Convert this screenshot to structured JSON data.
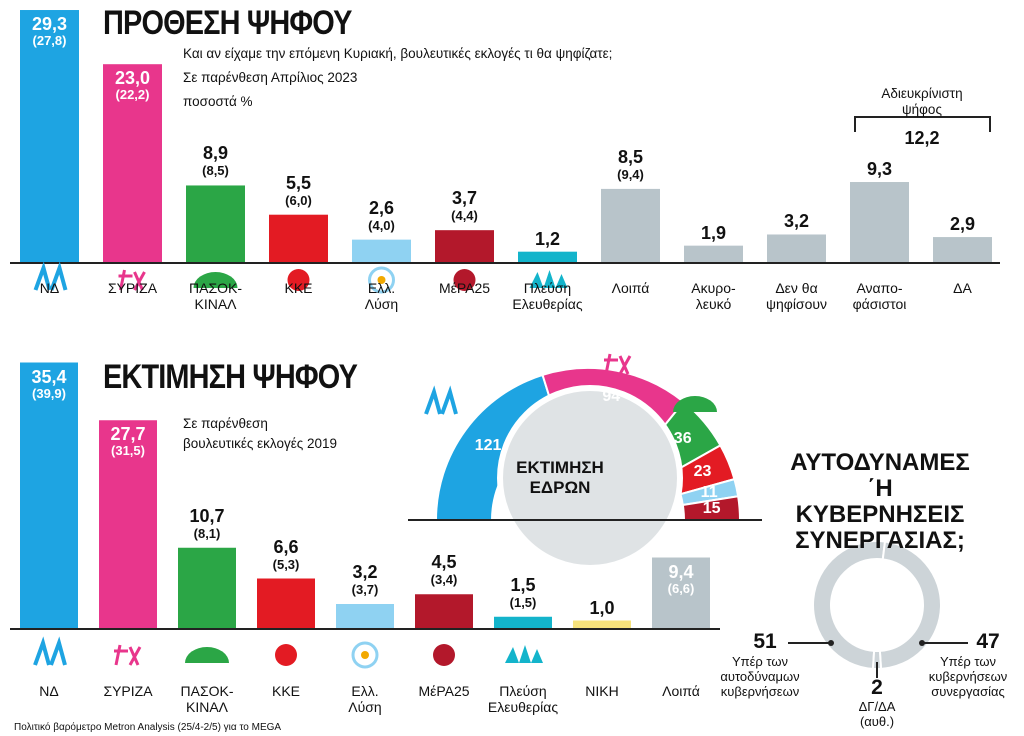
{
  "chart_data": [
    {
      "type": "bar",
      "title": "ΠΡΟΘΕΣΗ ΨΗΦΟΥ",
      "subtitle": [
        "Και αν είχαμε την επόμενη Κυριακή, βουλευτικές εκλογές τι θα ψηφίζατε;",
        "Σε παρένθεση Απρίλιος 2023",
        "ποσοστά %"
      ],
      "categories": [
        "ΝΔ",
        "ΣΥΡΙΖΑ",
        "ΠΑΣΟΚ-\nΚΙΝΑΛ",
        "ΚΚΕ",
        "Ελλ.\nΛύση",
        "ΜέΡΑ25",
        "Πλεύση\nΕλευθερίας",
        "Λοιπά",
        "Ακυρο-\nλευκό",
        "Δεν θα\nψηφίσουν",
        "Αναπο-\nφάσιστοι",
        "ΔΑ"
      ],
      "values": [
        29.3,
        23.0,
        8.9,
        5.5,
        2.6,
        3.7,
        1.2,
        8.5,
        1.9,
        3.2,
        9.3,
        2.9
      ],
      "value_labels": [
        "29,3",
        "23,0",
        "8,9",
        "5,5",
        "2,6",
        "3,7",
        "1,2",
        "8,5",
        "1,9",
        "3,2",
        "9,3",
        "2,9"
      ],
      "previous_values": [
        27.8,
        22.2,
        8.5,
        6.0,
        4.0,
        4.4,
        null,
        9.4,
        null,
        null,
        null,
        null
      ],
      "previous_labels": [
        "(27,8)",
        "(22,2)",
        "(8,5)",
        "(6,0)",
        "(4,0)",
        "(4,4)",
        null,
        "(9,4)",
        null,
        null,
        null,
        null
      ],
      "colors": [
        "#1ea4e2",
        "#e8368c",
        "#2ba646",
        "#e31b23",
        "#8fd2f2",
        "#b3182b",
        "#13b4cb",
        "#b8c4ca",
        "#b8c4ca",
        "#b8c4ca",
        "#b8c4ca",
        "#b8c4ca"
      ],
      "bracket": {
        "label": "Αδιευκρίνιστη\nψήφος",
        "value": 12.2,
        "value_label": "12,2"
      }
    },
    {
      "type": "bar",
      "title": "ΕΚΤΙΜΗΣΗ ΨΗΦΟΥ",
      "subtitle": [
        "Σε παρένθεση",
        "βουλευτικές εκλογές 2019"
      ],
      "categories": [
        "ΝΔ",
        "ΣΥΡΙΖΑ",
        "ΠΑΣΟΚ-\nΚΙΝΑΛ",
        "ΚΚΕ",
        "Ελλ.\nΛύση",
        "ΜέΡΑ25",
        "Πλεύση\nΕλευθερίας",
        "ΝΙΚΗ",
        "Λοιπά"
      ],
      "values": [
        35.4,
        27.7,
        10.7,
        6.6,
        3.2,
        4.5,
        1.5,
        1.0,
        9.4
      ],
      "value_labels": [
        "35,4",
        "27,7",
        "10,7",
        "6,6",
        "3,2",
        "4,5",
        "1,5",
        "1,0",
        "9,4"
      ],
      "previous_values": [
        39.9,
        31.5,
        8.1,
        5.3,
        3.7,
        3.4,
        1.5,
        null,
        6.6
      ],
      "previous_labels": [
        "(39,9)",
        "(31,5)",
        "(8,1)",
        "(5,3)",
        "(3,7)",
        "(3,4)",
        "(1,5)",
        null,
        "(6,6)"
      ],
      "colors": [
        "#1ea4e2",
        "#e8368c",
        "#2ba646",
        "#e31b23",
        "#8fd2f2",
        "#b3182b",
        "#13b4cb",
        "#f6e27c",
        "#b8c4ca"
      ]
    },
    {
      "type": "half-donut",
      "title": "ΕΚΤΙΜΗΣΗ\nΕΔΡΩΝ",
      "values": [
        121,
        94,
        36,
        23,
        11,
        15
      ],
      "colors": [
        "#1ea4e2",
        "#e8368c",
        "#2ba646",
        "#e31b23",
        "#8fd2f2",
        "#b3182b"
      ]
    },
    {
      "type": "donut",
      "title": "ΑΥΤΟΔΥΝΑΜΕΣ\n΄Η ΚΥΒΕΡΝΗΣΕΙΣ\nΣΥΝΕΡΓΑΣΙΑΣ;",
      "categories": [
        "Υπέρ των\nαυτοδύναμων\nκυβερνήσεων",
        "ΔΓ/ΔΑ\n(αυθ.)",
        "Υπέρ των\nκυβερνήσεων\nσυνεργασίας"
      ],
      "values": [
        51,
        2,
        47
      ],
      "color": "#cdd4d8"
    }
  ],
  "source": "Πολιτικό βαρόμετρο Metron Analysis (25/4-2/5) για το MEGA"
}
